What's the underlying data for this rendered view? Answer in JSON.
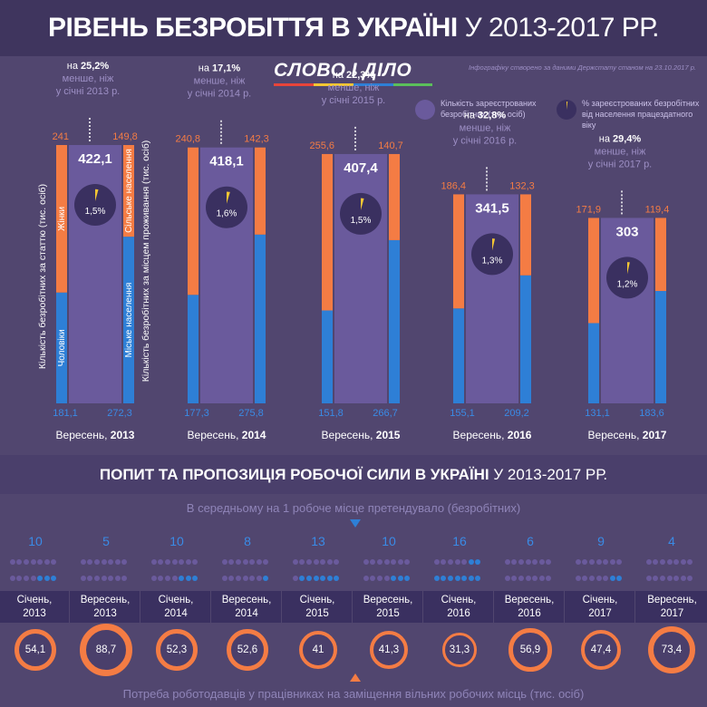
{
  "title": {
    "bold": "РІВЕНЬ БЕЗРОБІТТЯ В УКРАЇНІ",
    "thin": "У 2013-2017 РР."
  },
  "logo": "СЛОВО І ДІЛО",
  "source": "Інфографіку створено за даними Держстату станом на 23.10.2017 р.",
  "legend": {
    "registered": "Кількість зареєстрованих безробітних (тис. осіб)",
    "percent": "% зареєстрованих безробітних від населення працездатного віку"
  },
  "axis_labels": {
    "left": "Кількість безробітних за статтю (тис. осіб)",
    "right": "Кількість безробітних за місцем проживання (тис. осіб)",
    "women": "Жінки",
    "men": "Чоловіки",
    "rural": "Сільське населення",
    "urban": "Міське населення"
  },
  "colors": {
    "women": "#f47c44",
    "men": "#2e7fd6",
    "rural": "#f47c44",
    "urban": "#2e7fd6",
    "total": "#6a5a9c",
    "accent": "#f47c44"
  },
  "chart_data": [
    {
      "type": "bar",
      "categories": [
        "Вересень, 2013",
        "Вересень, 2014",
        "Вересень, 2015",
        "Вересень, 2016",
        "Вересень, 2017"
      ],
      "series": [
        {
          "name": "Жінки",
          "values": [
            241,
            240.8,
            255.6,
            186.4,
            171.9
          ]
        },
        {
          "name": "Чоловіки",
          "values": [
            181.1,
            177.3,
            151.8,
            155.1,
            131.1
          ]
        },
        {
          "name": "Сільське населення",
          "values": [
            149.8,
            142.3,
            140.7,
            132.3,
            119.4
          ]
        },
        {
          "name": "Міське населення",
          "values": [
            272.3,
            275.8,
            266.7,
            209.2,
            183.6
          ]
        },
        {
          "name": "Кількість зареєстрованих безробітних (тис. осіб)",
          "values": [
            422.1,
            418.1,
            407.4,
            341.5,
            303
          ]
        }
      ],
      "labels": {
        "women": [
          "241",
          "240,8",
          "255,6",
          "186,4",
          "171,9"
        ],
        "men": [
          "181,1",
          "177,3",
          "151,8",
          "155,1",
          "131,1"
        ],
        "rural": [
          "149,8",
          "142,3",
          "140,7",
          "132,3",
          "119,4"
        ],
        "urban": [
          "272,3",
          "275,8",
          "266,7",
          "209,2",
          "183,6"
        ],
        "total": [
          "422,1",
          "418,1",
          "407,4",
          "341,5",
          "303"
        ]
      },
      "percent": [
        1.5,
        1.6,
        1.5,
        1.3,
        1.2
      ],
      "percent_labels": [
        "1,5%",
        "1,6%",
        "1,5%",
        "1,3%",
        "1,2%"
      ],
      "notes": [
        {
          "prefix": "на ",
          "value": "25,2%",
          "text": "менше, ніж у січні 2013 р."
        },
        {
          "prefix": "на ",
          "value": "17,1%",
          "text": "менше, ніж у січні 2014 р."
        },
        {
          "prefix": "на ",
          "value": "22,3%",
          "text": "менше, ніж у січні 2015 р."
        },
        {
          "prefix": "на ",
          "value": "32,8%",
          "text": "менше, ніж у січні 2016 р."
        },
        {
          "prefix": "на ",
          "value": "29,4%",
          "text": "менше, ніж у січні 2017 р."
        }
      ],
      "period_labels": [
        {
          "month": "Вересень, ",
          "year": "2013"
        },
        {
          "month": "Вересень, ",
          "year": "2014"
        },
        {
          "month": "Вересень, ",
          "year": "2015"
        },
        {
          "month": "Вересень, ",
          "year": "2016"
        },
        {
          "month": "Вересень, ",
          "year": "2017"
        }
      ]
    },
    {
      "type": "table",
      "title": "ПОПИТ ТА ПРОПОЗИЦІЯ РОБОЧОЇ СИЛИ В УКРАЇНІ",
      "categories": [
        "Січень, 2013",
        "Вересень, 2013",
        "Січень, 2014",
        "Вересень, 2014",
        "Січень, 2015",
        "Вересень, 2015",
        "Січень, 2016",
        "Вересень, 2016",
        "Січень, 2017",
        "Вересень, 2017"
      ],
      "series": [
        {
          "name": "В середньому на 1 робоче місце претендувало (безробітних)",
          "values": [
            10,
            5,
            10,
            8,
            13,
            10,
            16,
            6,
            9,
            4
          ]
        },
        {
          "name": "Потреба роботодавців у працівниках на заміщення вільних робочих місць (тис. осіб)",
          "values": [
            54.1,
            88.7,
            52.3,
            52.6,
            41,
            41.3,
            31.3,
            56.9,
            47.4,
            73.4
          ]
        }
      ]
    }
  ],
  "section2": {
    "title_bold": "ПОПИТ ТА ПРОПОЗИЦІЯ РОБОЧОЇ СИЛИ В УКРАЇНІ",
    "title_thin": "У 2013-2017 РР.",
    "avg_label": "В середньому на 1 робоче місце претендувало (безробітних)",
    "need_label": "Потреба роботодавців у працівниках на заміщення вільних робочих місць (тис. осіб)",
    "ratio_labels": [
      "10",
      "5",
      "10",
      "8",
      "13",
      "10",
      "16",
      "6",
      "9",
      "4"
    ],
    "dates": [
      [
        "Січень,",
        "2013"
      ],
      [
        "Вересень,",
        "2013"
      ],
      [
        "Січень,",
        "2014"
      ],
      [
        "Вересень,",
        "2014"
      ],
      [
        "Січень,",
        "2015"
      ],
      [
        "Вересень,",
        "2015"
      ],
      [
        "Січень,",
        "2016"
      ],
      [
        "Вересень,",
        "2016"
      ],
      [
        "Січень,",
        "2017"
      ],
      [
        "Вересень,",
        "2017"
      ]
    ],
    "need_labels": [
      "54,1",
      "88,7",
      "52,3",
      "52,6",
      "41",
      "41,3",
      "31,3",
      "56,9",
      "47,4",
      "73,4"
    ]
  }
}
